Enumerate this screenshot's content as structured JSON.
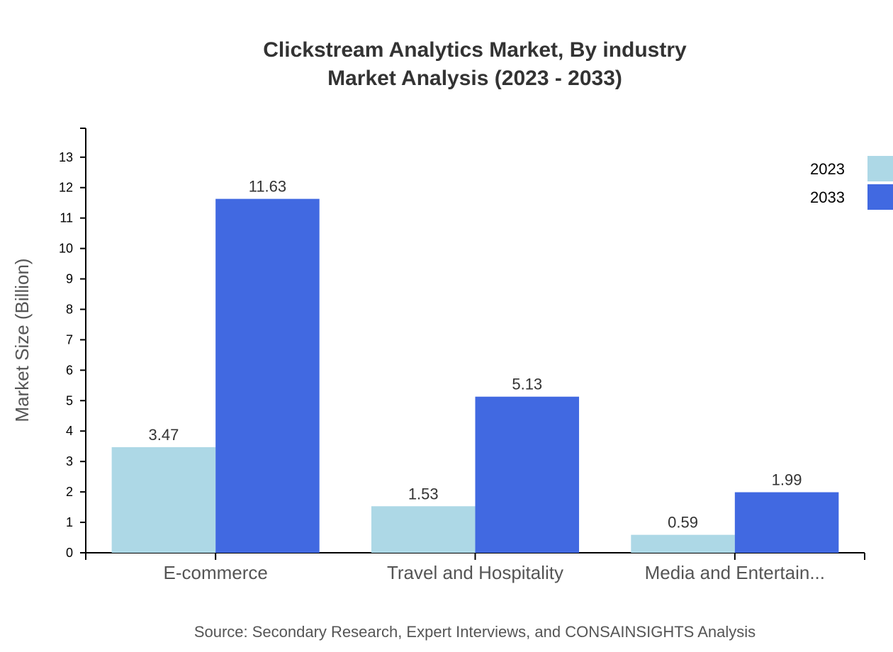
{
  "chart_data": {
    "type": "bar",
    "title": "Clickstream Analytics Market, By industry",
    "subtitle": "Market Analysis (2023 - 2033)",
    "xlabel": "",
    "ylabel": "Market Size (Billion)",
    "categories": [
      "E-commerce",
      "Travel and Hospitality",
      "Media and Entertain..."
    ],
    "series": [
      {
        "name": "2023",
        "color": "#add8e6",
        "values": [
          3.47,
          1.53,
          0.59
        ]
      },
      {
        "name": "2033",
        "color": "#4169e1",
        "values": [
          11.63,
          5.13,
          1.99
        ]
      }
    ],
    "ylim": [
      0,
      13.95
    ],
    "yticks": [
      0,
      1,
      2,
      3,
      4,
      5,
      6,
      7,
      8,
      9,
      10,
      11,
      12,
      13
    ],
    "grid": false,
    "legend": "top-right",
    "source": "Source: Secondary Research, Expert Interviews, and CONSAINSIGHTS Analysis"
  }
}
